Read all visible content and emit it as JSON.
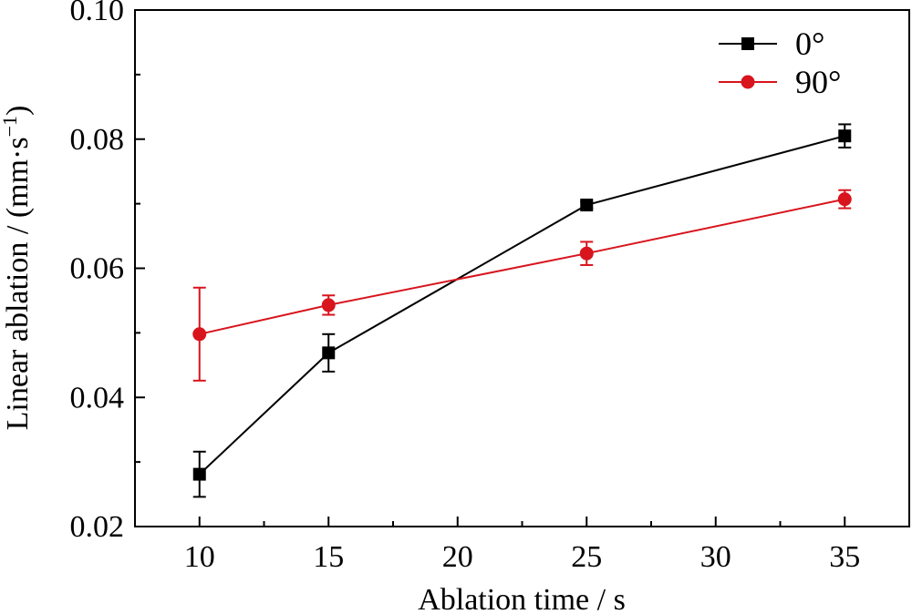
{
  "chart_data": {
    "type": "line",
    "xlabel": "Ablation time / s",
    "ylabel_main": "Linear ablation / (mm·s",
    "ylabel_sup": "−1",
    "ylabel_close": ")",
    "xlim": [
      7.5,
      37.5
    ],
    "ylim": [
      0.02,
      0.1
    ],
    "xticks": [
      10,
      15,
      20,
      25,
      30,
      35
    ],
    "xtick_labels": [
      "10",
      "15",
      "20",
      "25",
      "30",
      "35"
    ],
    "yticks": [
      0.02,
      0.04,
      0.06,
      0.08,
      0.1
    ],
    "ytick_labels": [
      "0.02",
      "0.04",
      "0.06",
      "0.08",
      "0.10"
    ],
    "grid": false,
    "legend_position": "top-right",
    "series": [
      {
        "name": "0°",
        "color": "#000000",
        "marker": "square",
        "x": [
          10,
          15,
          25,
          35
        ],
        "y": [
          0.0281,
          0.0469,
          0.0698,
          0.0805
        ],
        "err": [
          0.0035,
          0.0029,
          0.0005,
          0.0018
        ]
      },
      {
        "name": "90°",
        "color": "#d8141d",
        "marker": "circle",
        "x": [
          10,
          15,
          25,
          35
        ],
        "y": [
          0.0498,
          0.0543,
          0.0623,
          0.0707
        ],
        "err": [
          0.0072,
          0.0015,
          0.0018,
          0.0014
        ]
      }
    ]
  }
}
